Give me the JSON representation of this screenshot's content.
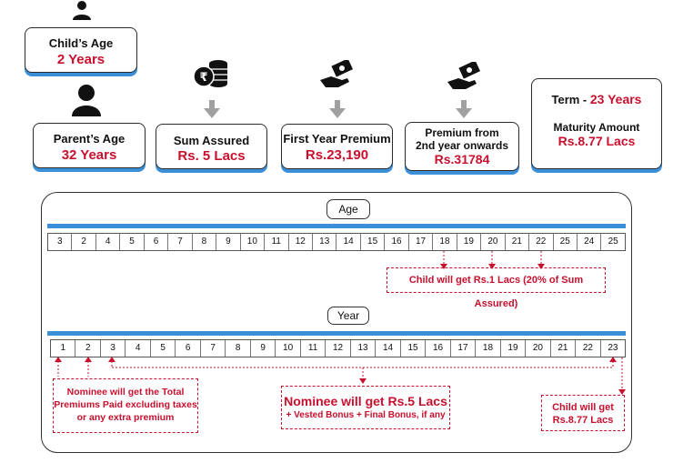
{
  "child": {
    "title": "Child’s Age",
    "value": "2 Years"
  },
  "parent": {
    "title": "Parent’s Age",
    "value": "32 Years"
  },
  "sum_assured": {
    "title": "Sum Assured",
    "value": "Rs. 5 Lacs"
  },
  "first_premium": {
    "title": "First Year Premium",
    "value": "Rs.23,190"
  },
  "later_premium": {
    "title_line1": "Premium from",
    "title_line2": "2nd year onwards",
    "value": "Rs.31784"
  },
  "term": {
    "label": "Term  - ",
    "value": "23 Years",
    "maturity_label": "Maturity Amount",
    "maturity_value": "Rs.8.77 Lacs"
  },
  "age_label": "Age",
  "ages": [
    "3",
    "2",
    "4",
    "5",
    "6",
    "7",
    "8",
    "9",
    "10",
    "11",
    "12",
    "13",
    "14",
    "15",
    "16",
    "17",
    "18",
    "19",
    "20",
    "21",
    "22",
    "25",
    "24",
    "25"
  ],
  "year_label": "Year",
  "years": [
    "1",
    "2",
    "3",
    "4",
    "5",
    "6",
    "7",
    "8",
    "9",
    "10",
    "11",
    "12",
    "13",
    "14",
    "15",
    "16",
    "17",
    "18",
    "19",
    "20",
    "21",
    "22",
    "23"
  ],
  "notes": {
    "child_partial": "Child will get Rs.1 Lacs (20% of Sum Assured)",
    "nominee_premiums": [
      "Nominee will get the Total",
      "Premiums Paid excluding taxes",
      "or any extra premium"
    ],
    "nominee_sum_title": "Nominee will get Rs.5 Lacs",
    "nominee_sum_sub": "+ Vested Bonus + Final Bonus, if any",
    "child_final": [
      "Child will get",
      "Rs.8.77 Lacs"
    ]
  },
  "colors": {
    "accent": "#3a8fd8",
    "red": "#c8102e",
    "icon_gray": "#a0a0a0"
  }
}
